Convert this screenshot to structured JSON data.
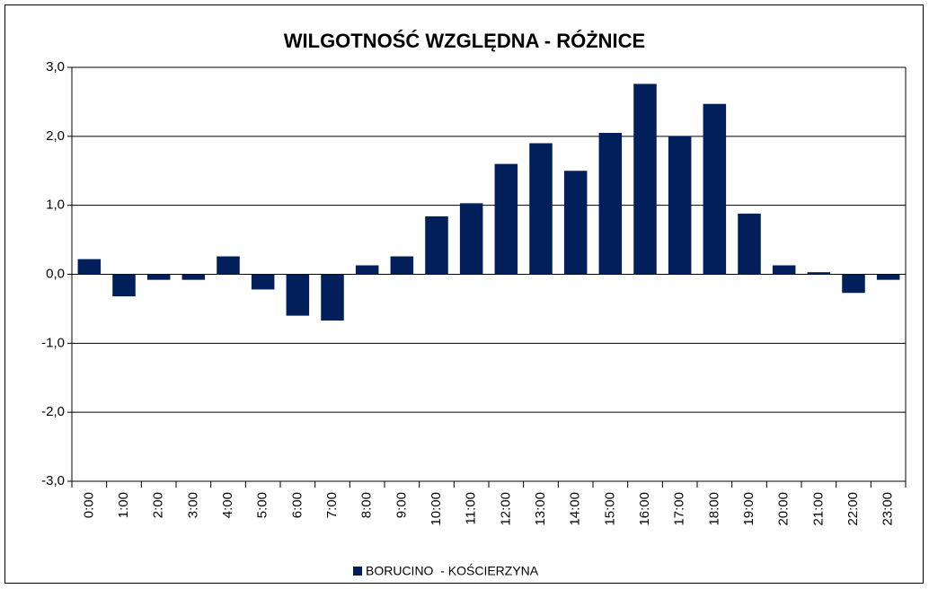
{
  "chart_data": {
    "type": "bar",
    "title": "WILGOTNOŚĆ WZGLĘDNA - RÓŻNICE",
    "categories": [
      "0:00",
      "1:00",
      "2:00",
      "3:00",
      "4:00",
      "5:00",
      "6:00",
      "7:00",
      "8:00",
      "9:00",
      "10:00",
      "11:00",
      "12:00",
      "13:00",
      "14:00",
      "15:00",
      "16:00",
      "17:00",
      "18:00",
      "19:00",
      "20:00",
      "21:00",
      "22:00",
      "23:00"
    ],
    "series": [
      {
        "name": "BORUCINO  - KOŚCIERZYNA",
        "color": "#001f5b",
        "values": [
          0.22,
          -0.32,
          -0.08,
          -0.08,
          0.26,
          -0.22,
          -0.6,
          -0.67,
          0.13,
          0.26,
          0.84,
          1.03,
          1.6,
          1.9,
          1.5,
          2.05,
          2.76,
          2.0,
          2.47,
          0.88,
          0.13,
          0.03,
          -0.27,
          -0.08
        ]
      }
    ],
    "ylim": [
      -3,
      3
    ],
    "yticks": [
      {
        "value": -3,
        "label": "-3,0"
      },
      {
        "value": -2,
        "label": "-2,0"
      },
      {
        "value": -1,
        "label": "-1,0"
      },
      {
        "value": 0,
        "label": "0,0"
      },
      {
        "value": 1,
        "label": "1,0"
      },
      {
        "value": 2,
        "label": "2,0"
      },
      {
        "value": 3,
        "label": "3,0"
      }
    ],
    "grid": true,
    "legend": "bottom"
  }
}
